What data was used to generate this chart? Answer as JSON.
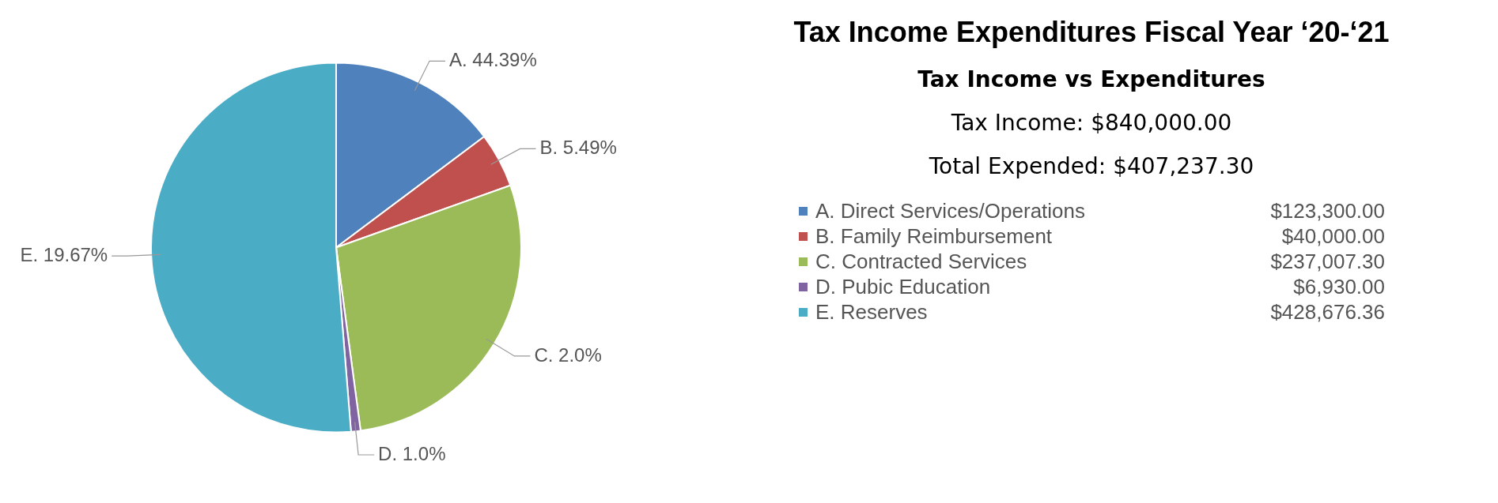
{
  "chart_data": {
    "type": "pie",
    "title": "Tax Income Expenditures Fiscal Year ‘20-‘21",
    "subtitle": "Tax Income vs Expenditures",
    "categories": [
      "A. Direct Services/Operations",
      "B. Family Reimbursement",
      "C. Contracted Services",
      "D. Pubic Education",
      "E. Reserves"
    ],
    "values": [
      123300.0,
      40000.0,
      237007.3,
      6930.0,
      428676.36
    ],
    "colors": [
      "#4f81bd",
      "#c0504d",
      "#9bbb59",
      "#8064a2",
      "#4bacc6"
    ],
    "annotations": [
      {
        "text": "A. 44.39%",
        "x": "A. Direct Services/Operations"
      },
      {
        "text": "B. 5.49%",
        "x": "B. Family Reimbursement"
      },
      {
        "text": "C. 2.0%",
        "x": "C. Contracted Services"
      },
      {
        "text": "D. 1.0%",
        "x": "D. Pubic Education"
      },
      {
        "text": "E. 19.67%",
        "x": "E. Reserves"
      },
      "Tax Income: $840,000.00",
      "Total Expended: $407,237.30"
    ],
    "value_labels": [
      "$123,300.00",
      "$40,000.00",
      "$237,007.30",
      "$6,930.00",
      "$428,676.36"
    ],
    "legend": "right"
  }
}
